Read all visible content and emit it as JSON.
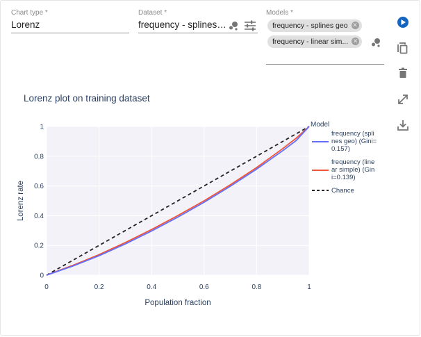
{
  "form": {
    "chart_type": {
      "label": "Chart type *",
      "value": "Lorenz"
    },
    "dataset": {
      "label": "Dataset *",
      "value": "frequency - splines geo"
    },
    "models": {
      "label": "Models *",
      "chips": [
        "frequency - splines geo",
        "frequency - linear sim..."
      ]
    }
  },
  "icons": {
    "dataset_scatter": "scatter-icon",
    "dataset_tune": "tune-icon",
    "models_scatter": "scatter-icon",
    "run": "play-circle-icon",
    "copy": "copy-icon",
    "delete": "trash-icon",
    "expand": "expand-icon",
    "download": "download-icon"
  },
  "colors": {
    "run": "#1565c0",
    "icons": "#757575",
    "series1": "#636efa",
    "series2": "#ef553b",
    "chance": "#222222",
    "plot_bg": "#f3f2f8"
  },
  "chart_data": {
    "type": "line",
    "title": "Lorenz plot on training dataset",
    "xlabel": "Population fraction",
    "ylabel": "Lorenz rate",
    "xlim": [
      0,
      1
    ],
    "ylim": [
      0,
      1
    ],
    "xticks": [
      "0",
      "0.2",
      "0.4",
      "0.6",
      "0.8",
      "1"
    ],
    "yticks": [
      "0",
      "0.2",
      "0.4",
      "0.6",
      "0.8",
      "1"
    ],
    "grid": true,
    "legend_title": "Model",
    "legend_position": "right",
    "series": [
      {
        "name": "frequency (splines geo) (Gini=0.157)",
        "legend_lines": [
          "frequency (spli",
          "nes geo) (Gini=",
          "0.157)"
        ],
        "x": [
          0,
          0.1,
          0.2,
          0.3,
          0.4,
          0.5,
          0.6,
          0.7,
          0.8,
          0.9,
          0.95,
          1
        ],
        "y": [
          0,
          0.061,
          0.131,
          0.21,
          0.297,
          0.39,
          0.49,
          0.598,
          0.713,
          0.838,
          0.904,
          1
        ]
      },
      {
        "name": "frequency (linear simple) (Gini=0.139)",
        "legend_lines": [
          "frequency (line",
          "ar simple) (Gin",
          "i=0.139)"
        ],
        "x": [
          0,
          0.1,
          0.2,
          0.3,
          0.4,
          0.5,
          0.6,
          0.7,
          0.8,
          0.9,
          0.95,
          1
        ],
        "y": [
          0,
          0.066,
          0.138,
          0.219,
          0.307,
          0.401,
          0.5,
          0.608,
          0.724,
          0.852,
          0.92,
          1
        ]
      },
      {
        "name": "Chance",
        "legend_lines": [
          "Chance"
        ],
        "x": [
          0,
          1
        ],
        "y": [
          0,
          1
        ]
      }
    ]
  }
}
